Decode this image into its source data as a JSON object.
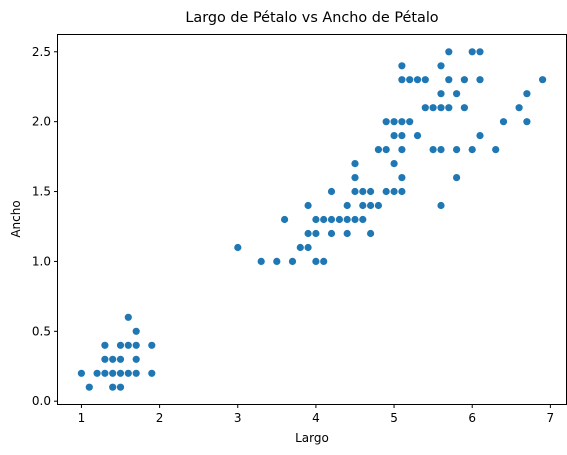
{
  "chart_data": {
    "type": "scatter",
    "title": "Largo de Pétalo vs Ancho de Pétalo",
    "xlabel": "Largo",
    "ylabel": "Ancho",
    "xlim": [
      0.7,
      7.2
    ],
    "ylim": [
      -0.02,
      2.62
    ],
    "xticks": [
      "1",
      "2",
      "3",
      "4",
      "5",
      "6",
      "7"
    ],
    "yticks": [
      "0.0",
      "0.5",
      "1.0",
      "1.5",
      "2.0",
      "2.5"
    ],
    "grid": false,
    "marker_color": "#1f77b4",
    "points": [
      [
        1.0,
        0.2
      ],
      [
        1.1,
        0.1
      ],
      [
        1.2,
        0.2
      ],
      [
        1.3,
        0.2
      ],
      [
        1.3,
        0.3
      ],
      [
        1.3,
        0.4
      ],
      [
        1.4,
        0.1
      ],
      [
        1.4,
        0.2
      ],
      [
        1.4,
        0.3
      ],
      [
        1.5,
        0.1
      ],
      [
        1.5,
        0.2
      ],
      [
        1.5,
        0.3
      ],
      [
        1.5,
        0.4
      ],
      [
        1.6,
        0.2
      ],
      [
        1.6,
        0.4
      ],
      [
        1.6,
        0.6
      ],
      [
        1.7,
        0.2
      ],
      [
        1.7,
        0.3
      ],
      [
        1.7,
        0.4
      ],
      [
        1.7,
        0.5
      ],
      [
        1.9,
        0.2
      ],
      [
        1.9,
        0.4
      ],
      [
        3.0,
        1.1
      ],
      [
        3.3,
        1.0
      ],
      [
        3.5,
        1.0
      ],
      [
        3.6,
        1.3
      ],
      [
        3.7,
        1.0
      ],
      [
        3.8,
        1.1
      ],
      [
        3.9,
        1.1
      ],
      [
        3.9,
        1.2
      ],
      [
        3.9,
        1.4
      ],
      [
        4.0,
        1.0
      ],
      [
        4.0,
        1.2
      ],
      [
        4.0,
        1.3
      ],
      [
        4.1,
        1.0
      ],
      [
        4.1,
        1.3
      ],
      [
        4.2,
        1.2
      ],
      [
        4.2,
        1.3
      ],
      [
        4.2,
        1.5
      ],
      [
        4.3,
        1.3
      ],
      [
        4.4,
        1.2
      ],
      [
        4.4,
        1.3
      ],
      [
        4.4,
        1.4
      ],
      [
        4.5,
        1.3
      ],
      [
        4.5,
        1.5
      ],
      [
        4.5,
        1.6
      ],
      [
        4.5,
        1.7
      ],
      [
        4.6,
        1.3
      ],
      [
        4.6,
        1.4
      ],
      [
        4.6,
        1.5
      ],
      [
        4.7,
        1.2
      ],
      [
        4.7,
        1.4
      ],
      [
        4.7,
        1.5
      ],
      [
        4.8,
        1.4
      ],
      [
        4.8,
        1.8
      ],
      [
        4.9,
        1.5
      ],
      [
        4.9,
        1.8
      ],
      [
        4.9,
        2.0
      ],
      [
        5.0,
        1.5
      ],
      [
        5.0,
        1.7
      ],
      [
        5.0,
        1.9
      ],
      [
        5.0,
        2.0
      ],
      [
        5.1,
        1.5
      ],
      [
        5.1,
        1.6
      ],
      [
        5.1,
        1.8
      ],
      [
        5.1,
        1.9
      ],
      [
        5.1,
        2.0
      ],
      [
        5.1,
        2.3
      ],
      [
        5.1,
        2.4
      ],
      [
        5.2,
        2.0
      ],
      [
        5.2,
        2.3
      ],
      [
        5.3,
        1.9
      ],
      [
        5.3,
        2.3
      ],
      [
        5.4,
        2.1
      ],
      [
        5.4,
        2.3
      ],
      [
        5.5,
        1.8
      ],
      [
        5.5,
        2.1
      ],
      [
        5.6,
        1.4
      ],
      [
        5.6,
        1.8
      ],
      [
        5.6,
        2.1
      ],
      [
        5.6,
        2.2
      ],
      [
        5.6,
        2.4
      ],
      [
        5.7,
        2.1
      ],
      [
        5.7,
        2.3
      ],
      [
        5.7,
        2.5
      ],
      [
        5.8,
        1.6
      ],
      [
        5.8,
        1.8
      ],
      [
        5.8,
        2.2
      ],
      [
        5.9,
        2.1
      ],
      [
        5.9,
        2.3
      ],
      [
        6.0,
        1.8
      ],
      [
        6.0,
        2.5
      ],
      [
        6.1,
        1.9
      ],
      [
        6.1,
        2.3
      ],
      [
        6.1,
        2.5
      ],
      [
        6.3,
        1.8
      ],
      [
        6.4,
        2.0
      ],
      [
        6.6,
        2.1
      ],
      [
        6.7,
        2.0
      ],
      [
        6.7,
        2.2
      ],
      [
        6.9,
        2.3
      ]
    ]
  }
}
